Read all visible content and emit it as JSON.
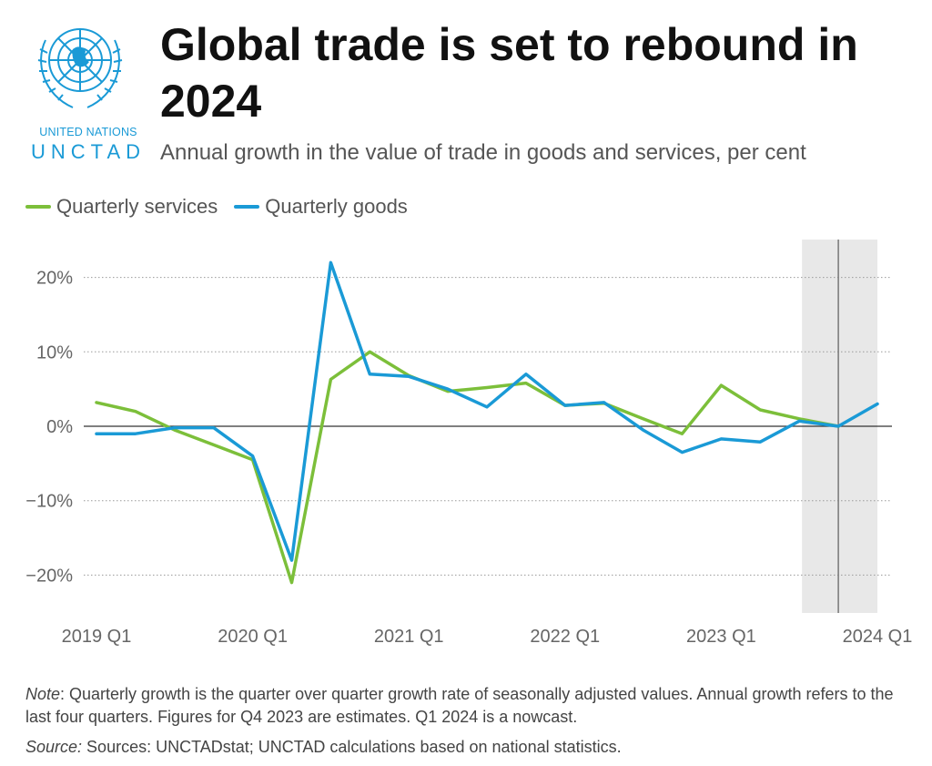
{
  "logo": {
    "org": "UNITED NATIONS",
    "name": "UNCTAD",
    "color": "#1a9ad6"
  },
  "header": {
    "title": "Global trade is set to rebound in 2024",
    "subtitle": "Annual growth in the value of trade in goods and services, per cent"
  },
  "legend": [
    {
      "label": "Quarterly services",
      "color": "#7cbf3a"
    },
    {
      "label": "Quarterly goods",
      "color": "#1a9ad6"
    }
  ],
  "chart_data": {
    "type": "line",
    "x": [
      "2019 Q1",
      "2019 Q2",
      "2019 Q3",
      "2019 Q4",
      "2020 Q1",
      "2020 Q2",
      "2020 Q3",
      "2020 Q4",
      "2021 Q1",
      "2021 Q2",
      "2021 Q3",
      "2021 Q4",
      "2022 Q1",
      "2022 Q2",
      "2022 Q3",
      "2022 Q4",
      "2023 Q1",
      "2023 Q2",
      "2023 Q3",
      "2023 Q4",
      "2024 Q1"
    ],
    "series": [
      {
        "name": "Quarterly services",
        "color": "#7cbf3a",
        "values": [
          3.2,
          2.0,
          -0.5,
          -2.5,
          -4.5,
          -21.0,
          6.3,
          10.0,
          6.8,
          4.7,
          5.2,
          5.8,
          2.8,
          3.1,
          1.0,
          -1.0,
          5.5,
          2.2,
          1.0,
          0.0,
          null
        ]
      },
      {
        "name": "Quarterly goods",
        "color": "#1a9ad6",
        "values": [
          -1.0,
          -1.0,
          -0.2,
          -0.2,
          -4.0,
          -18.0,
          22.0,
          7.0,
          6.7,
          5.0,
          2.6,
          7.0,
          2.8,
          3.2,
          -0.5,
          -3.5,
          -1.7,
          -2.1,
          0.7,
          0.0,
          3.0
        ]
      }
    ],
    "xticks": [
      "2019 Q1",
      "2020 Q1",
      "2021 Q1",
      "2022 Q1",
      "2023 Q1",
      "2024 Q1"
    ],
    "yticks": [
      20,
      10,
      0,
      -10,
      -20
    ],
    "ytick_labels": [
      "20%",
      "10%",
      "0%",
      "−10%",
      "−20%"
    ],
    "ylim": [
      -25,
      25
    ],
    "grid": true,
    "shaded_region": [
      "2023 Q3 (mid)",
      "2024 Q1"
    ],
    "vertical_marker": "2023 Q4",
    "legend_position": "top-left",
    "title": "Global trade is set to rebound in 2024",
    "xlabel": "",
    "ylabel": ""
  },
  "footer": {
    "note_label": "Note",
    "note_text": ": Quarterly growth is the quarter over quarter growth rate of seasonally adjusted values. Annual growth refers to the last four quarters. Figures for Q4 2023 are estimates. Q1 2024 is a nowcast.",
    "source_label": "Source:",
    "source_text": " Sources: UNCTADstat; UNCTAD calculations based on national statistics."
  }
}
